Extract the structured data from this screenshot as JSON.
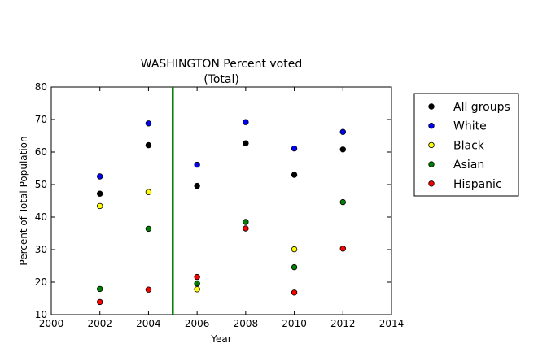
{
  "chart_data": {
    "type": "scatter",
    "title": "WASHINGTON Percent voted",
    "subtitle": "(Total)",
    "xlabel": "Year",
    "ylabel": "Percent of Total Population",
    "xlim": [
      2000,
      2014
    ],
    "ylim": [
      10,
      80
    ],
    "x_ticks": [
      "2000",
      "2002",
      "2004",
      "2006",
      "2008",
      "2010",
      "2012",
      "2014"
    ],
    "y_ticks": [
      "10",
      "20",
      "30",
      "40",
      "50",
      "60",
      "70",
      "80"
    ],
    "grid": false,
    "legend_position": "outside-right",
    "vertical_line": {
      "x": 2005,
      "color": "#008000"
    },
    "series": [
      {
        "name": "All groups",
        "color": "#000000",
        "points": [
          [
            2002,
            47.2
          ],
          [
            2004,
            62.1
          ],
          [
            2006,
            49.6
          ],
          [
            2008,
            62.7
          ],
          [
            2010,
            53.0
          ],
          [
            2012,
            60.8
          ]
        ]
      },
      {
        "name": "White",
        "color": "#0000ff",
        "points": [
          [
            2002,
            52.5
          ],
          [
            2004,
            68.8
          ],
          [
            2006,
            56.1
          ],
          [
            2008,
            69.2
          ],
          [
            2010,
            61.1
          ],
          [
            2012,
            66.2
          ]
        ]
      },
      {
        "name": "Black",
        "color": "#ffff00",
        "points": [
          [
            2002,
            43.4
          ],
          [
            2004,
            47.7
          ],
          [
            2006,
            17.8
          ],
          [
            2010,
            30.1
          ]
        ]
      },
      {
        "name": "Asian",
        "color": "#008000",
        "points": [
          [
            2002,
            17.9
          ],
          [
            2004,
            36.4
          ],
          [
            2006,
            19.6
          ],
          [
            2008,
            38.5
          ],
          [
            2010,
            24.6
          ],
          [
            2012,
            44.6
          ]
        ]
      },
      {
        "name": "Hispanic",
        "color": "#ff0000",
        "points": [
          [
            2002,
            13.9
          ],
          [
            2004,
            17.7
          ],
          [
            2006,
            21.6
          ],
          [
            2008,
            36.5
          ],
          [
            2010,
            16.8
          ],
          [
            2012,
            30.3
          ]
        ]
      }
    ]
  }
}
